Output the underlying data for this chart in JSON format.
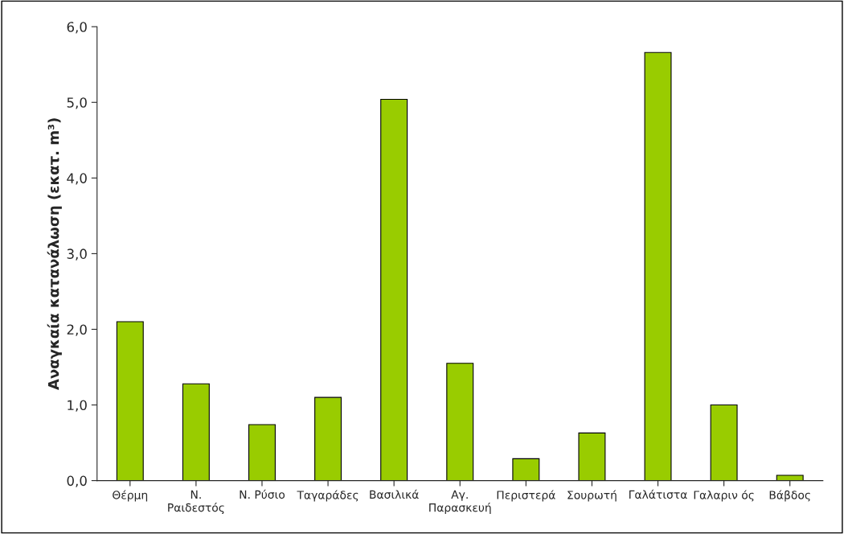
{
  "chart_data": {
    "type": "bar",
    "ylabel": "Αναγκαία κατανάλωση (εκατ. m³)",
    "categories": [
      "Θέρμη",
      "Ν.\nΡαιδεστός",
      "Ν. Ρύσιο",
      "Ταγαράδες",
      "Βασιλικά",
      "Αγ.\nΠαρασκευή",
      "Περιστερά",
      "Σουρωτή",
      "Γαλάτιστα",
      "Γαλαριν ός",
      "Βάβδος"
    ],
    "values": [
      2.1,
      1.28,
      0.74,
      1.1,
      5.04,
      1.55,
      0.29,
      0.63,
      5.66,
      1.0,
      0.07
    ],
    "color": "#99cc00",
    "ylim": [
      0,
      6
    ],
    "yticks": [
      {
        "value": 0,
        "label": "0,0"
      },
      {
        "value": 1,
        "label": "1,0"
      },
      {
        "value": 2,
        "label": "2,0"
      },
      {
        "value": 3,
        "label": "3,0"
      },
      {
        "value": 4,
        "label": "4,0"
      },
      {
        "value": 5,
        "label": "5,0"
      },
      {
        "value": 6,
        "label": "6,0"
      }
    ],
    "grid": false,
    "legend": false
  }
}
